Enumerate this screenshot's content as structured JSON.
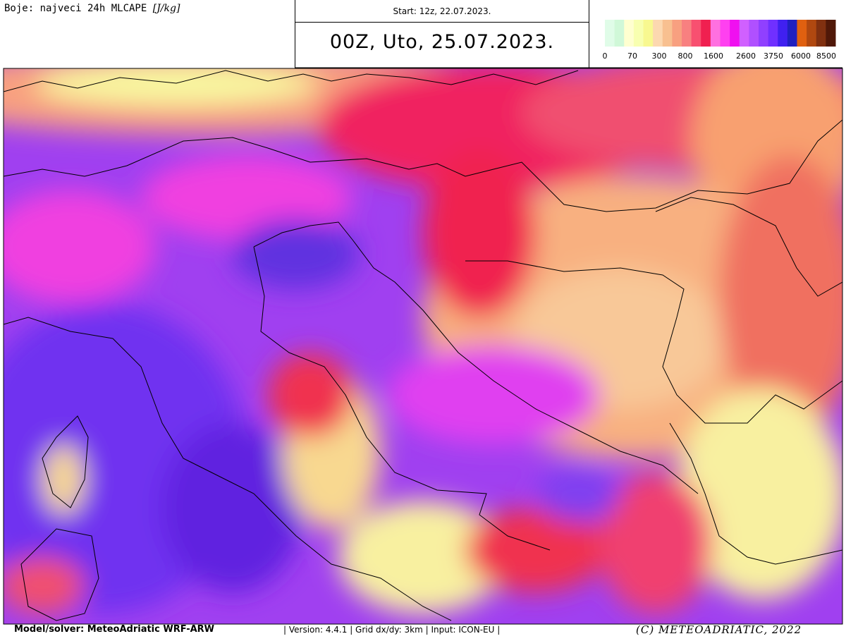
{
  "header": {
    "field_label": "Boje: najveci 24h MLCAPE",
    "unit": "[J/kg]",
    "start": "Start: 12z, 22.07.2023.",
    "valid": "00Z, Uto, 25.07.2023."
  },
  "colorbar": {
    "labels": [
      0,
      70,
      300,
      800,
      1600,
      2600,
      3750,
      6000,
      8500
    ]
  },
  "footer": {
    "model": "Model/solver: MeteoAdriatic WRF-ARW",
    "info": "| Version: 4.4.1 | Grid dx/dy: 3km | Input: ICON-EU |",
    "copyright": "(C) METEOADRIATIC, 2022"
  }
}
